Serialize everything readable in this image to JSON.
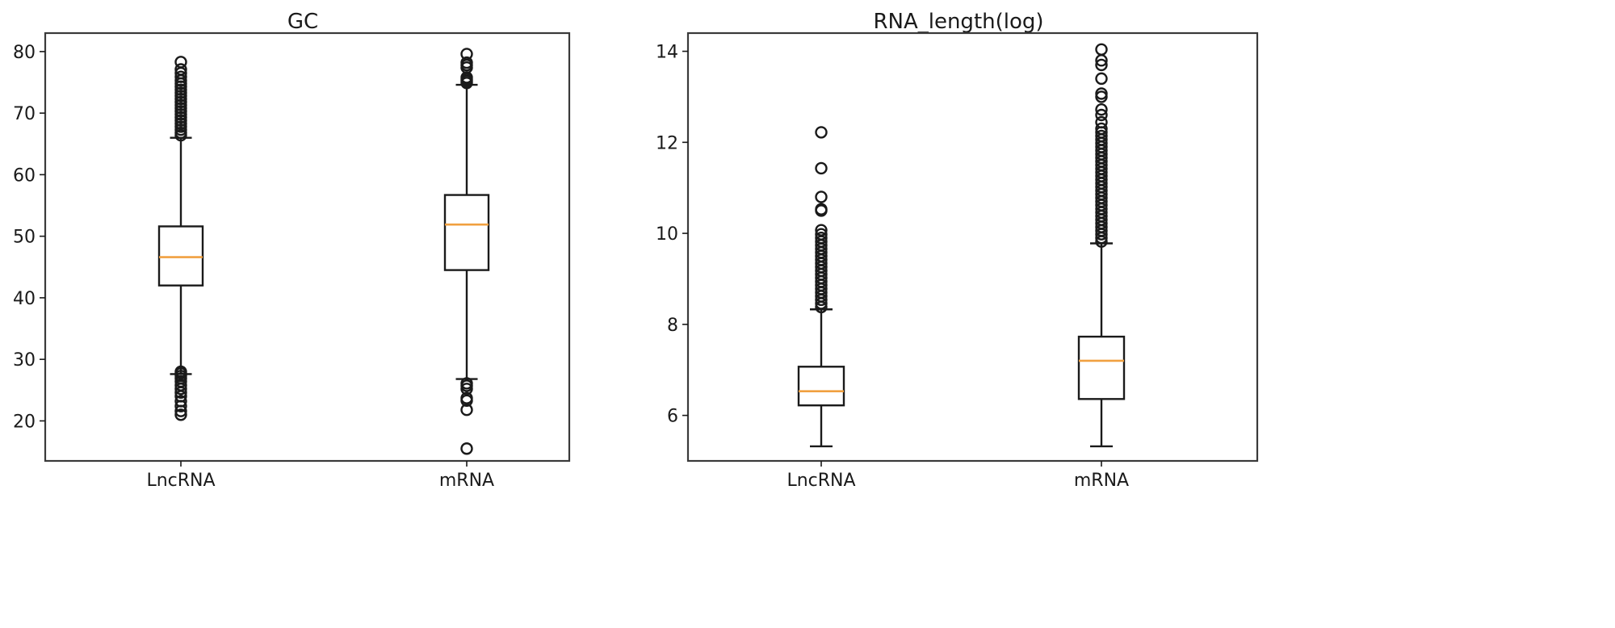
{
  "chart_data": [
    {
      "type": "box",
      "title": "GC",
      "categories": [
        "LncRNA",
        "mRNA"
      ],
      "ylim": [
        13.5,
        83
      ],
      "yticks": [
        20,
        30,
        40,
        50,
        60,
        70,
        80
      ],
      "grid": false,
      "boxes": [
        {
          "category": "LncRNA",
          "whislo": 27.6,
          "q1": 42.0,
          "med": 46.6,
          "q3": 51.6,
          "whishi": 66.0,
          "fliers": [
            21.0,
            21.6,
            22.4,
            23.2,
            24.0,
            24.6,
            25.2,
            25.8,
            26.4,
            26.9,
            27.3,
            27.7,
            28.0,
            66.4,
            66.8,
            67.3,
            67.8,
            68.3,
            68.8,
            69.3,
            69.8,
            70.3,
            70.8,
            71.3,
            71.8,
            72.3,
            72.8,
            73.3,
            73.8,
            74.3,
            74.8,
            75.3,
            75.9,
            76.5,
            77.1,
            78.3
          ]
        },
        {
          "category": "mRNA",
          "whislo": 26.8,
          "q1": 44.5,
          "med": 51.9,
          "q3": 56.7,
          "whishi": 74.6,
          "fliers": [
            15.5,
            21.8,
            23.3,
            23.7,
            25.2,
            25.7,
            26.1,
            74.9,
            75.2,
            75.5,
            75.8,
            77.4,
            77.8,
            78.2,
            79.6
          ]
        }
      ]
    },
    {
      "type": "box",
      "title": "RNA_length(log)",
      "categories": [
        "LncRNA",
        "mRNA"
      ],
      "ylim": [
        5.0,
        14.4
      ],
      "yticks": [
        6,
        8,
        10,
        12,
        14
      ],
      "grid": false,
      "boxes": [
        {
          "category": "LncRNA",
          "whislo": 5.32,
          "q1": 6.22,
          "med": 6.53,
          "q3": 7.07,
          "whishi": 8.33,
          "fliers": [
            8.38,
            8.46,
            8.54,
            8.62,
            8.7,
            8.78,
            8.86,
            8.94,
            9.02,
            9.1,
            9.18,
            9.26,
            9.34,
            9.42,
            9.5,
            9.58,
            9.66,
            9.74,
            9.82,
            9.9,
            9.98,
            10.07,
            10.5,
            10.53,
            10.8,
            11.43,
            12.22
          ]
        },
        {
          "category": "mRNA",
          "whislo": 5.32,
          "q1": 6.36,
          "med": 7.2,
          "q3": 7.73,
          "whishi": 9.78,
          "fliers": [
            9.82,
            9.9,
            9.98,
            10.06,
            10.14,
            10.22,
            10.3,
            10.38,
            10.46,
            10.54,
            10.62,
            10.7,
            10.78,
            10.86,
            10.94,
            11.02,
            11.1,
            11.18,
            11.26,
            11.34,
            11.42,
            11.5,
            11.58,
            11.66,
            11.74,
            11.82,
            11.9,
            11.98,
            12.06,
            12.14,
            12.22,
            12.3,
            12.44,
            12.6,
            12.72,
            13.0,
            13.07,
            13.4,
            13.7,
            13.8,
            14.04
          ]
        }
      ]
    }
  ],
  "colors": {
    "median": "#f0a040",
    "box": "#1a1a1a",
    "background": "#ffffff"
  }
}
